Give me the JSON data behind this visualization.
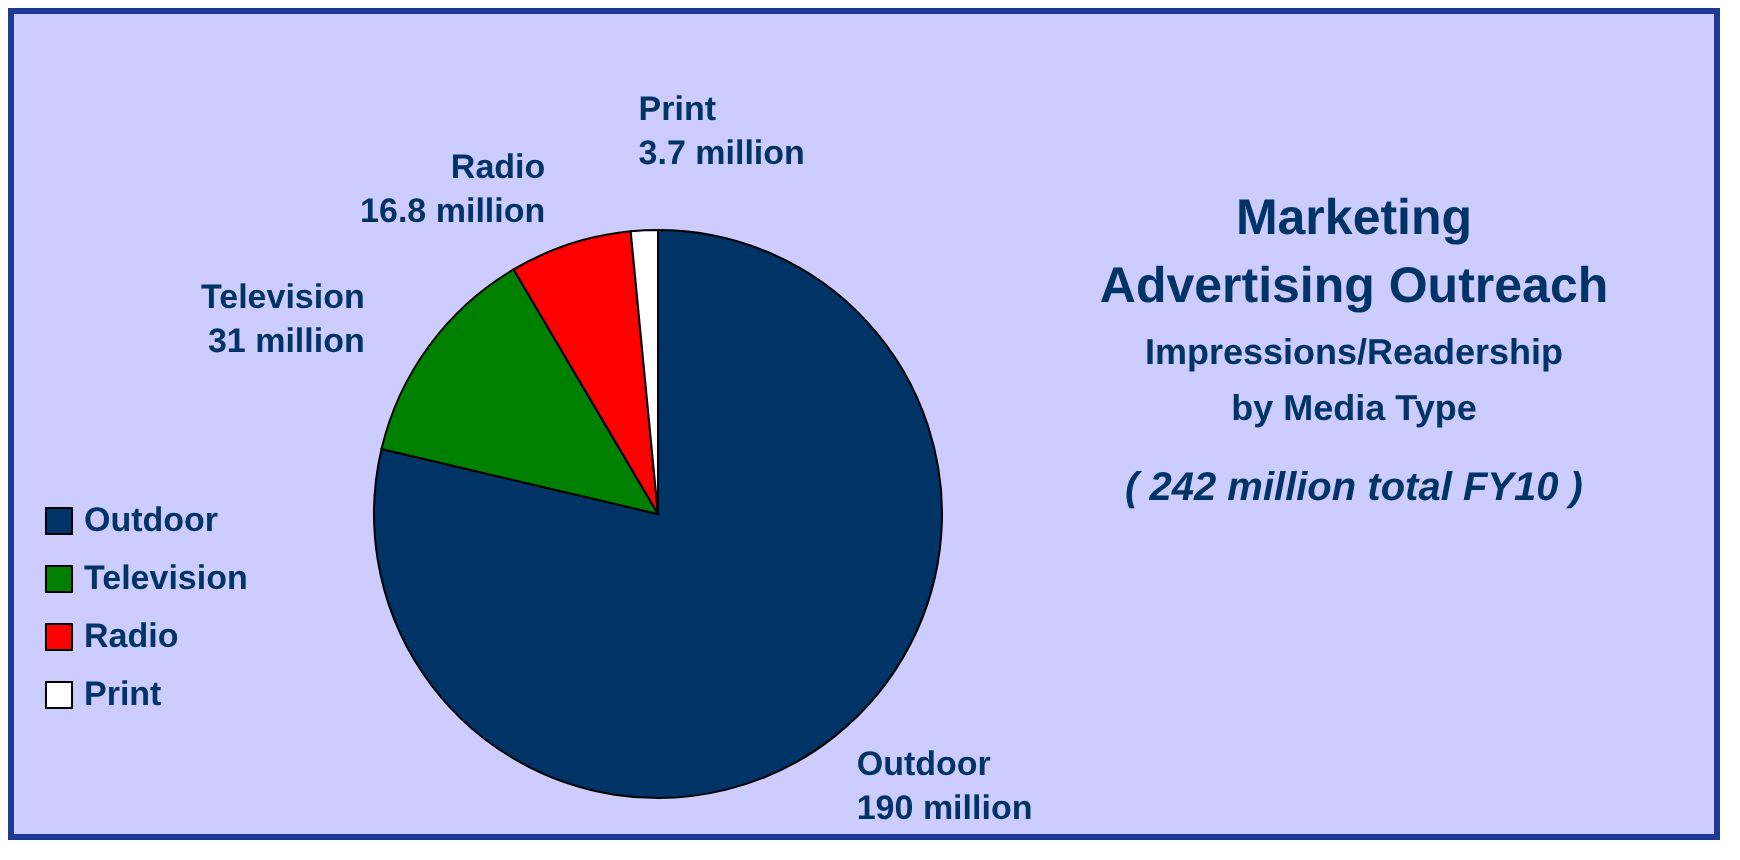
{
  "chart_data": {
    "type": "pie",
    "title": "Marketing Advertising Outreach",
    "subtitle": "Impressions/Readership by Media Type",
    "annotations": [
      "( 242 million total FY10 )"
    ],
    "categories": [
      "Outdoor",
      "Television",
      "Radio",
      "Print"
    ],
    "values": [
      190,
      31,
      16.8,
      3.7
    ],
    "value_labels": [
      "190 million",
      "31 million",
      "16.8 million",
      "3.7 million"
    ],
    "colors": [
      "#003366",
      "#008000",
      "#ff0000",
      "#ffffff"
    ],
    "legend": "left"
  }
}
